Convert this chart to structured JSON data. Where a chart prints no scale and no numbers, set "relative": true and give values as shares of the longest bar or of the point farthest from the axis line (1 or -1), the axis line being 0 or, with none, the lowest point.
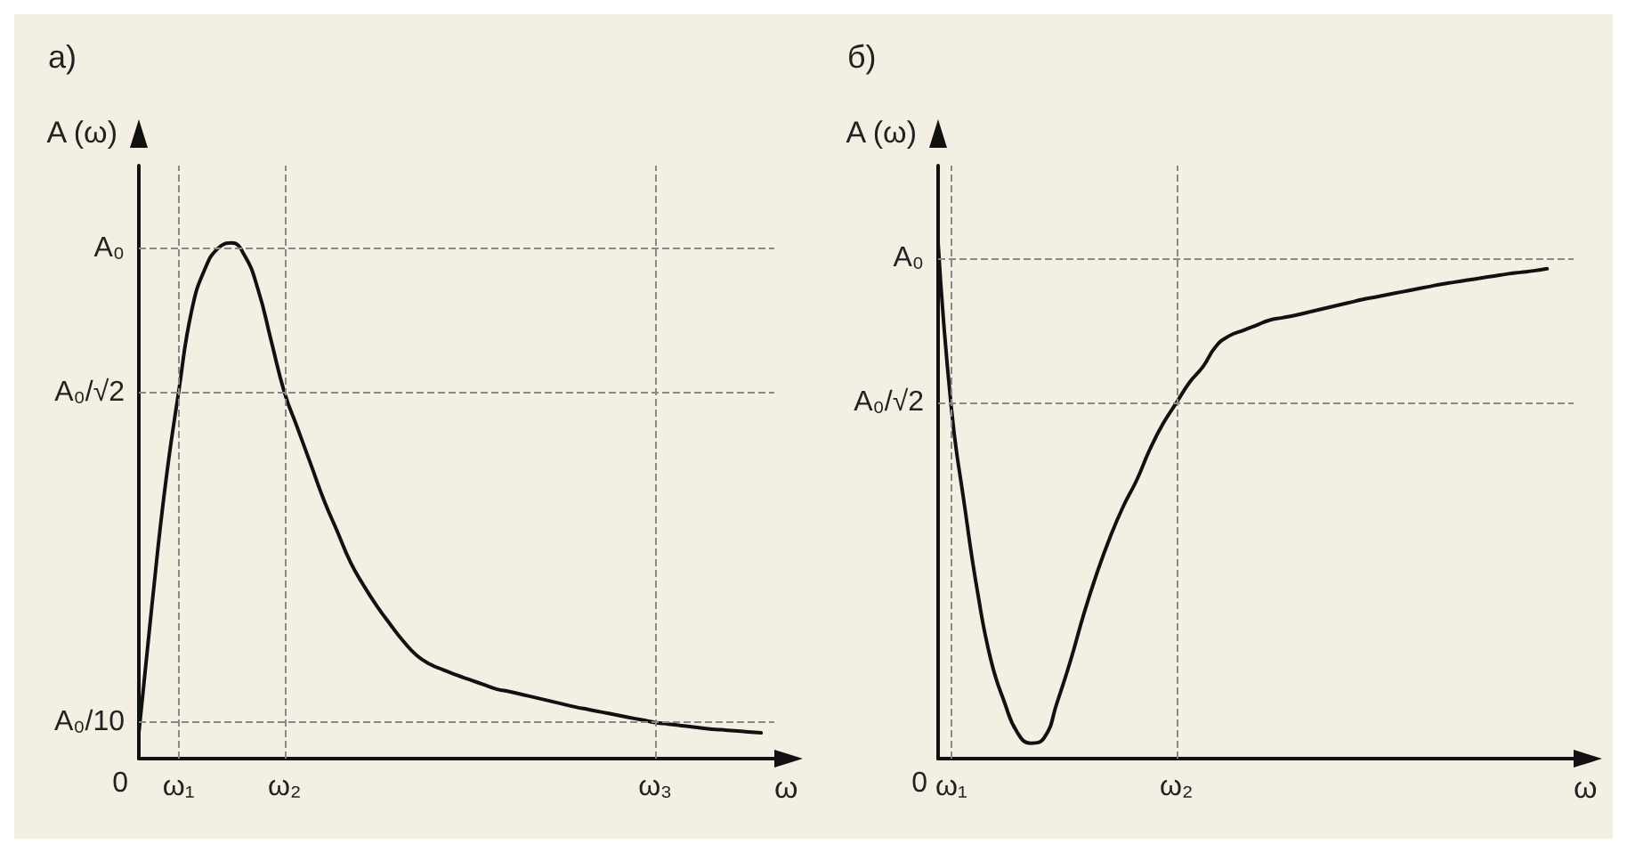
{
  "chart_data": [
    {
      "type": "line",
      "title": "а)",
      "xlabel": "ω",
      "ylabel": "A (ω)",
      "relative": true,
      "categories": [
        null,
        null,
        null,
        "ω₁",
        null,
        null,
        null,
        null,
        null,
        null,
        null,
        "ω₂",
        null,
        null,
        null,
        null,
        null,
        null,
        null,
        null,
        null,
        null,
        null,
        null,
        null,
        null,
        null,
        null,
        null,
        null,
        null,
        null,
        null,
        null,
        null,
        null,
        null,
        null,
        null,
        "ω₃",
        null,
        null,
        null,
        null,
        null,
        null,
        null,
        null,
        null
      ],
      "series": [
        {
          "color": "#111111",
          "values": [
            0.05,
            0.3,
            0.53,
            0.71,
            0.87,
            0.95,
            0.99,
            1.0,
            0.975,
            0.91,
            0.81,
            0.71,
            0.64,
            0.57,
            0.5,
            0.44,
            0.38,
            0.335,
            0.295,
            0.26,
            0.227,
            0.2,
            0.183,
            0.172,
            0.162,
            0.153,
            0.144,
            0.135,
            0.13,
            0.124,
            0.118,
            0.112,
            0.106,
            0.1,
            0.095,
            0.09,
            0.085,
            0.08,
            0.075,
            0.07,
            0.067,
            0.064,
            0.061,
            0.058,
            0.056,
            0.054,
            0.052,
            0.05,
            null
          ]
        }
      ],
      "ref_lines": [
        {
          "axis": "y",
          "value": 0.99,
          "label": "A₀",
          "color": "#888888",
          "line_style": "dashed"
        },
        {
          "axis": "y",
          "value": 0.71,
          "label": "A₀/√2",
          "color": "#888888",
          "line_style": "dashed"
        },
        {
          "axis": "y",
          "value": 0.07,
          "label": "A₀/10",
          "color": "#888888",
          "line_style": "dashed"
        },
        {
          "axis": "x",
          "value": "ω₁",
          "color": "#888888",
          "line_style": "dashed"
        },
        {
          "axis": "x",
          "value": "ω₂",
          "color": "#888888",
          "line_style": "dashed"
        },
        {
          "axis": "x",
          "value": "ω₃",
          "color": "#888888",
          "line_style": "dashed"
        }
      ],
      "annotations": [
        "0"
      ],
      "grid": false,
      "marker": "none",
      "line_style": "solid"
    },
    {
      "type": "line",
      "title": "б)",
      "xlabel": "ω",
      "ylabel": "A (ω)",
      "relative": true,
      "categories": [
        null,
        "ω₁",
        null,
        null,
        null,
        null,
        null,
        null,
        null,
        null,
        null,
        null,
        null,
        null,
        null,
        null,
        null,
        null,
        "ω₂",
        null,
        null,
        null,
        null,
        null,
        null,
        null,
        null,
        null,
        null,
        null,
        null,
        null,
        null,
        null,
        null,
        null,
        null,
        null,
        null,
        null,
        null,
        null,
        null,
        null,
        null,
        null,
        null,
        null,
        null
      ],
      "series": [
        {
          "color": "#111111",
          "values": [
            1.0,
            0.68,
            0.49,
            0.32,
            0.19,
            0.11,
            0.05,
            0.03,
            0.04,
            0.11,
            0.19,
            0.28,
            0.36,
            0.43,
            0.49,
            0.54,
            0.6,
            0.65,
            0.69,
            0.73,
            0.76,
            0.8,
            0.82,
            0.83,
            0.84,
            0.85,
            0.855,
            0.86,
            0.866,
            0.872,
            0.878,
            0.884,
            0.89,
            0.895,
            0.9,
            0.905,
            0.91,
            0.915,
            0.92,
            0.924,
            0.928,
            0.932,
            0.936,
            0.94,
            0.943,
            0.946,
            0.95,
            null,
            null
          ]
        }
      ],
      "ref_lines": [
        {
          "axis": "y",
          "value": 0.97,
          "label": "A₀",
          "color": "#888888",
          "line_style": "dashed"
        },
        {
          "axis": "y",
          "value": 0.69,
          "label": "A₀/√2",
          "color": "#888888",
          "line_style": "dashed"
        },
        {
          "axis": "x",
          "value": "ω₁",
          "color": "#888888",
          "line_style": "dashed"
        },
        {
          "axis": "x",
          "value": "ω₂",
          "color": "#888888",
          "line_style": "dashed"
        }
      ],
      "annotations": [
        "0"
      ],
      "grid": false,
      "marker": "none",
      "line_style": "solid"
    }
  ]
}
